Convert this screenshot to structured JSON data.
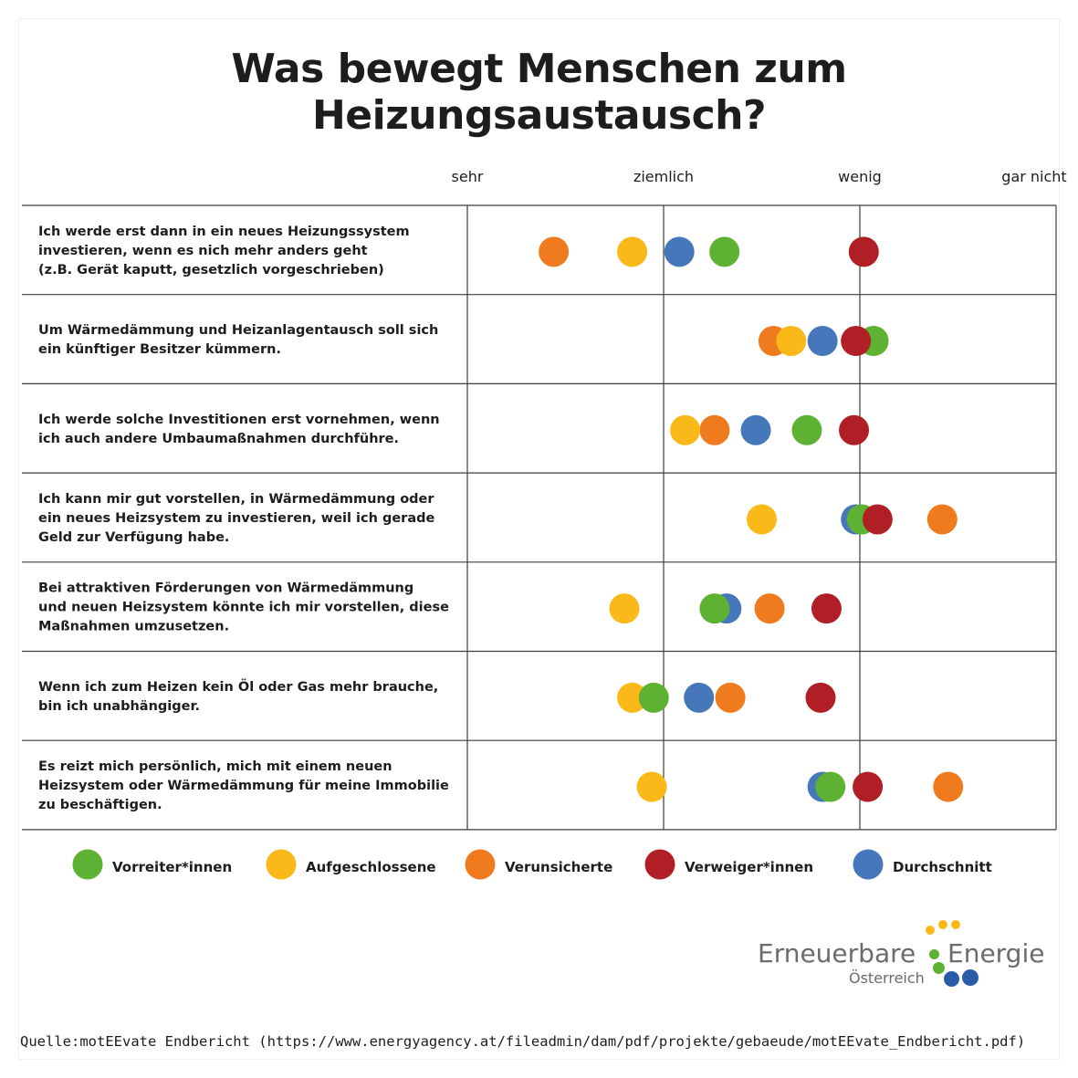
{
  "title": "Was bewegt Menschen zum Heizungsaustausch?",
  "chart_data": {
    "type": "scatter",
    "scale": [
      "sehr",
      "ziemlich",
      "wenig",
      "gar nicht"
    ],
    "xlim": [
      1,
      4
    ],
    "statements": [
      "Ich werde erst dann in ein neues Heizungssystem\ninvestieren, wenn es nich mehr anders geht\n(z.B. Gerät kaputt, gesetzlich vorgeschrieben)",
      "Um Wärmedämmung und Heizanlagentausch soll sich\nein künftiger Besitzer kümmern.",
      "Ich werde solche Investitionen erst vornehmen, wenn\nich auch andere Umbaumaßnahmen durchführe.",
      "Ich kann mir gut vorstellen, in Wärmedämmung oder\nein neues Heizsystem zu investieren, weil ich gerade\nGeld zur Verfügung habe.",
      "Bei attraktiven Förderungen von Wärmedämmung\nund neuen Heizsystem könnte ich mir vorstellen, diese\nMaßnahmen umzusetzen.",
      "Wenn ich zum Heizen kein Öl oder Gas mehr brauche,\nbin ich unabhängiger.",
      "Es reizt mich persönlich, mich mit einem neuen\nHeizsystem oder Wärmedämmung für meine Immobilie\nzu beschäftigen."
    ],
    "series": [
      {
        "name": "Vorreiter*innen",
        "color": "#5db233",
        "values": [
          2.31,
          3.07,
          2.73,
          3.01,
          2.26,
          1.95,
          2.85
        ]
      },
      {
        "name": "Aufgeschlossene",
        "color": "#fbb919",
        "values": [
          1.84,
          2.65,
          2.11,
          2.5,
          1.8,
          1.84,
          1.94
        ]
      },
      {
        "name": "Verunsicherte",
        "color": "#ef7b1e",
        "values": [
          1.44,
          2.56,
          2.26,
          3.42,
          2.54,
          2.34,
          3.45
        ]
      },
      {
        "name": "Verweiger*innen",
        "color": "#b01f26",
        "values": [
          3.02,
          2.98,
          2.97,
          3.09,
          2.83,
          2.8,
          3.04
        ]
      },
      {
        "name": "Durchschnitt",
        "color": "#4777bb",
        "values": [
          2.08,
          2.81,
          2.47,
          2.98,
          2.32,
          2.18,
          2.81
        ]
      }
    ],
    "legend": "bottom",
    "grid": true
  },
  "logo": {
    "word1": "Erneuerbare",
    "word2": "Energie",
    "subtitle": "Österreich",
    "dot_colors": [
      "#fbb919",
      "#5db233",
      "#2a5ba8"
    ]
  },
  "source": "Quelle:motEEvate Endbericht (https://www.energyagency.at/fileadmin/dam/pdf/projekte/gebaeude/motEEvate_Endbericht.pdf)"
}
